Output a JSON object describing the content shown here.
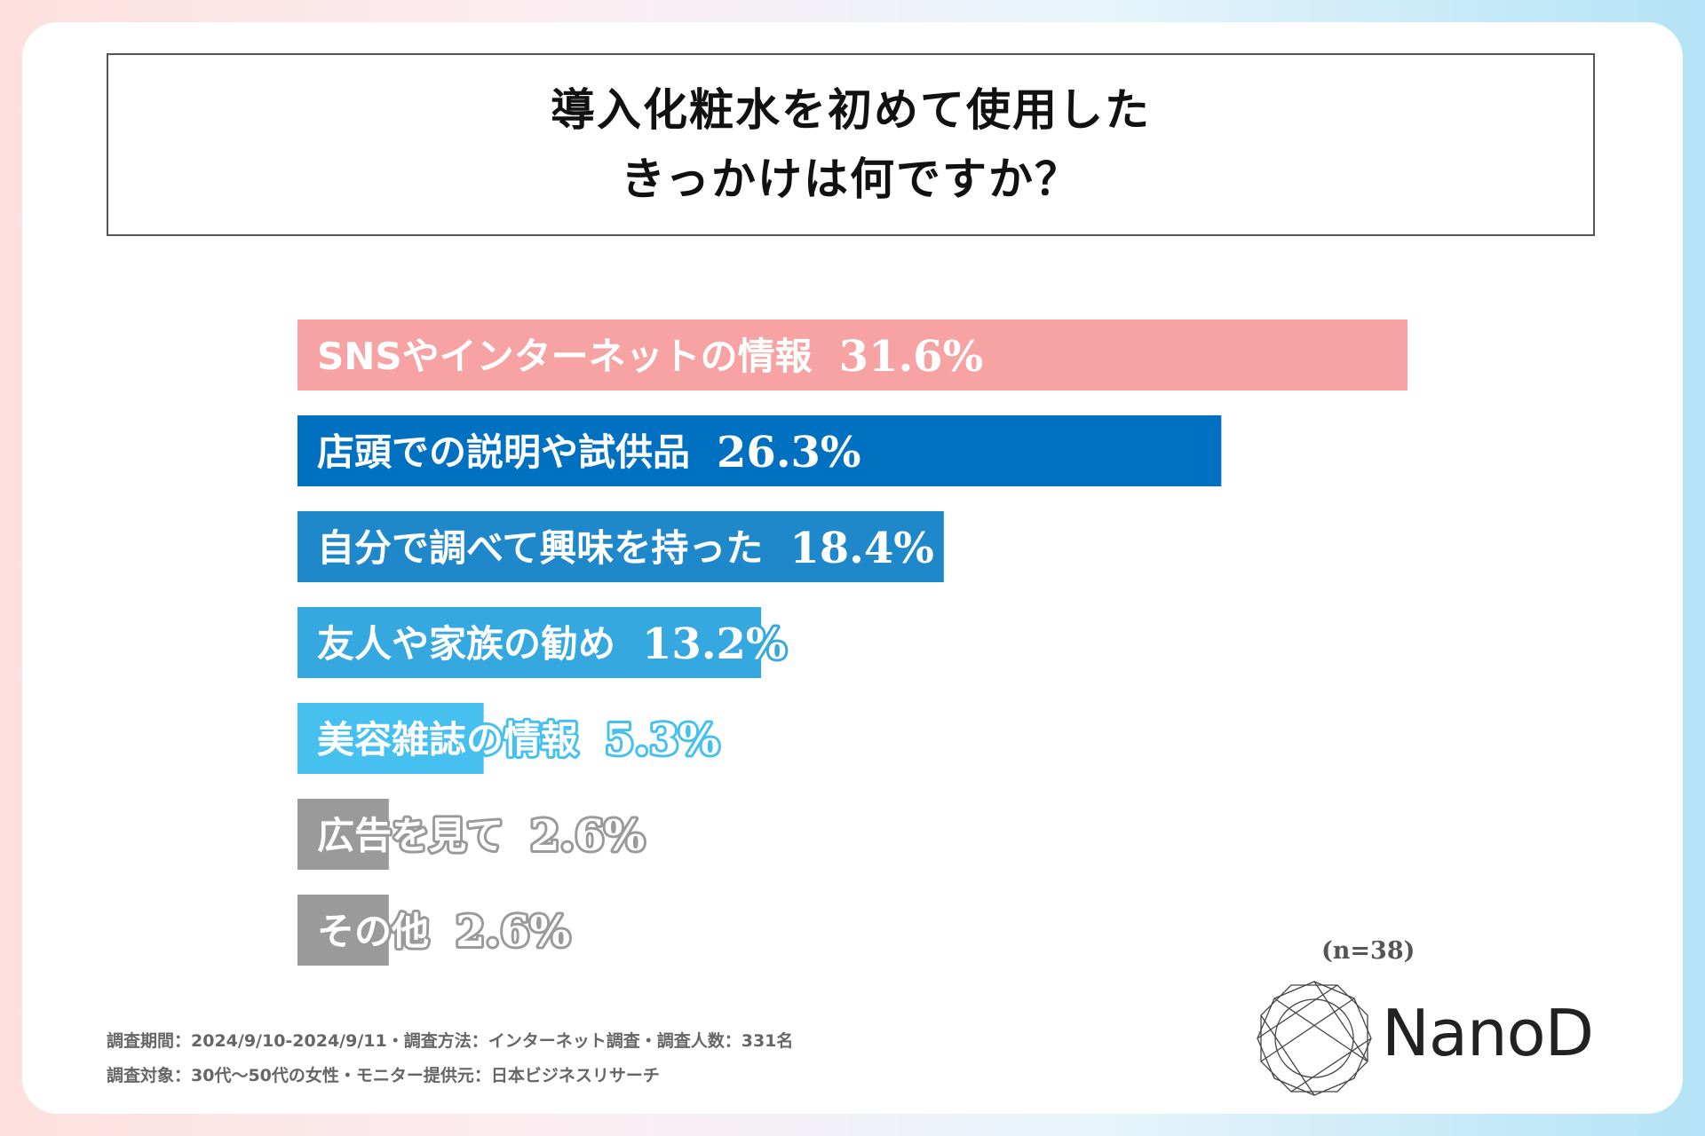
{
  "chart_data": {
    "type": "bar",
    "orientation": "horizontal",
    "title": [
      "導入化粧水を初めて使用した",
      "きっかけは何ですか？"
    ],
    "unit": "%",
    "xlim": [
      0,
      31.6
    ],
    "categories": [
      "SNSやインターネットの情報",
      "店頭での説明や試供品",
      "自分で調べて興味を持った",
      "友人や家族の勧め",
      "美容雑誌の情報",
      "広告を見て",
      "その他"
    ],
    "values": [
      31.6,
      26.3,
      18.4,
      13.2,
      5.3,
      2.6,
      2.6
    ],
    "value_labels": [
      "31.6%",
      "26.3%",
      "18.4%",
      "13.2%",
      "5.3%",
      "2.6%",
      "2.6%"
    ],
    "colors": [
      "#f7a3a3",
      "#0070c0",
      "#1f88cb",
      "#35a8e0",
      "#45c0ef",
      "#9a9a9a",
      "#9a9a9a"
    ],
    "sample_size": "(n=38)"
  },
  "footnotes": {
    "line1": "調査期間：2024/9/10-2024/9/11・調査方法：インターネット調査・調査人数：331名",
    "line2": "調査対象：30代〜50代の女性・モニター提供元：日本ビジネスリサーチ"
  },
  "logo": {
    "text": "NanoD",
    "icon": "diamond-logo-icon"
  }
}
